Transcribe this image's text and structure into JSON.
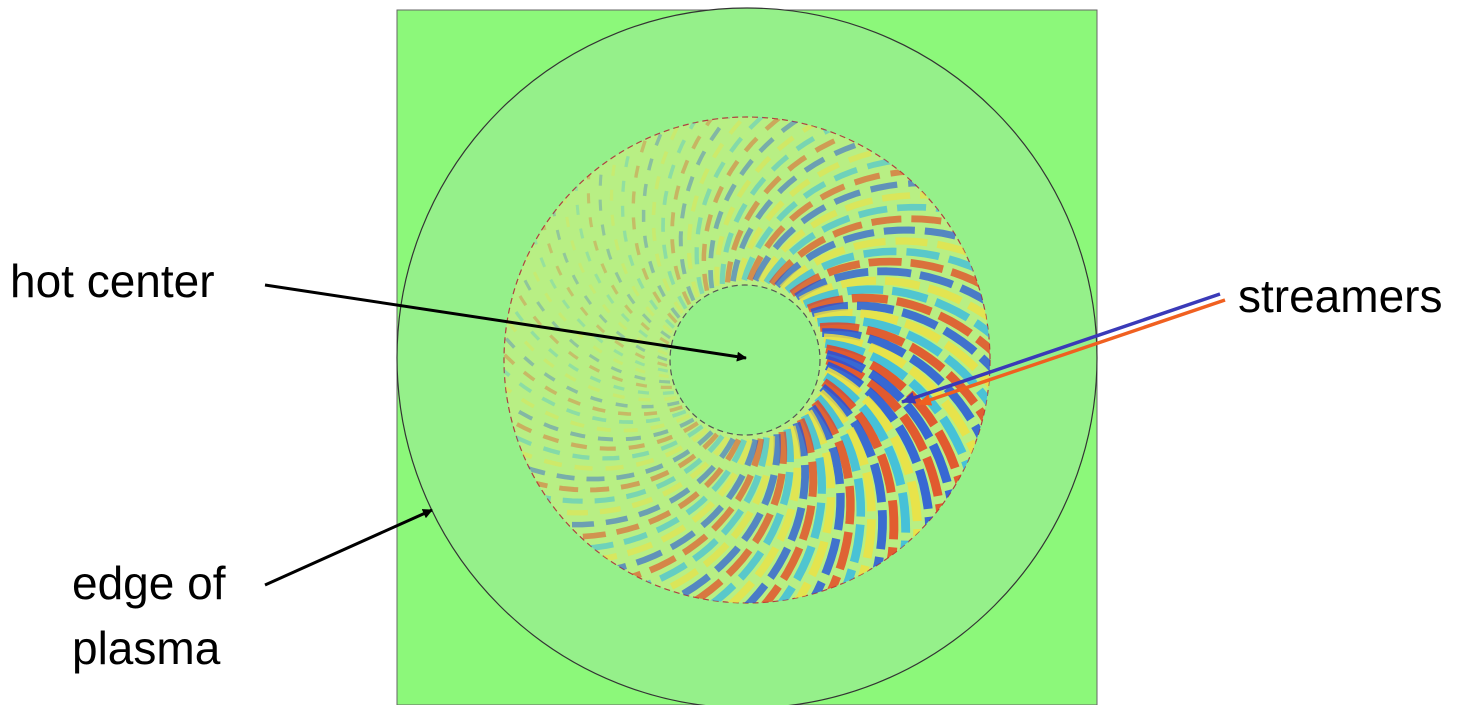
{
  "labels": {
    "hot_center": "hot center",
    "streamers": "streamers",
    "edge_of_plasma": [
      "edge of",
      "plasma"
    ]
  }
}
